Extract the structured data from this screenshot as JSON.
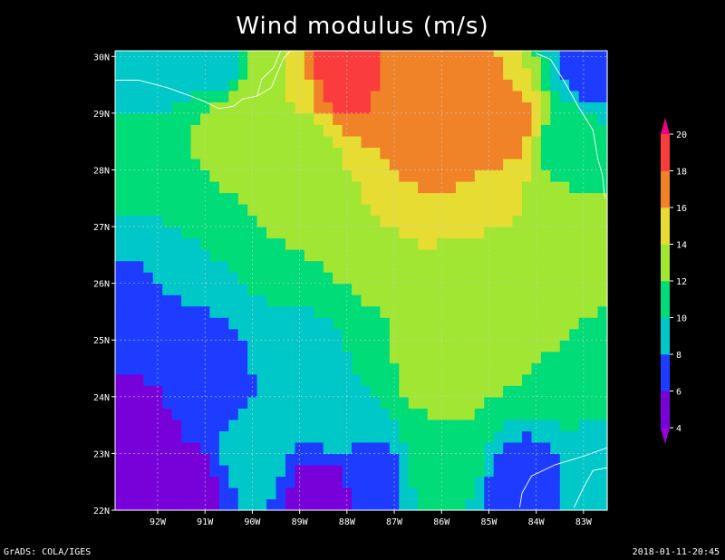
{
  "chart_data": {
    "type": "heatmap",
    "title": "Wind modulus (m/s)",
    "x_ticks": [
      "92W",
      "91W",
      "90W",
      "89W",
      "88W",
      "87W",
      "86W",
      "85W",
      "84W",
      "83W"
    ],
    "y_ticks": [
      "30N",
      "29N",
      "28N",
      "27N",
      "26N",
      "25N",
      "24N",
      "23N",
      "22N"
    ],
    "xlim": [
      -92.9,
      -82.5
    ],
    "ylim": [
      22,
      30.1
    ],
    "colorbar": {
      "levels": [
        4,
        6,
        8,
        10,
        12,
        14,
        16,
        18,
        20
      ],
      "labels": [
        "4",
        "6",
        "8",
        "10",
        "12",
        "14",
        "16",
        "18",
        "20"
      ],
      "colors": [
        "#a000e0",
        "#7800d8",
        "#1e3cff",
        "#00c8c8",
        "#00dc78",
        "#a0e632",
        "#e6dc32",
        "#f08228",
        "#fa3c3c",
        "#f00082"
      ]
    },
    "grid": true,
    "fields": [
      {
        "lon": -88.0,
        "lat": 29.7,
        "value": 19
      },
      {
        "lon": -86.8,
        "lat": 29.5,
        "value": 17.5
      },
      {
        "lon": -86.5,
        "lat": 28.4,
        "value": 16.5
      },
      {
        "lon": -85.6,
        "lat": 29.1,
        "value": 17
      },
      {
        "lon": -84.6,
        "lat": 28.8,
        "value": 16.5
      },
      {
        "lon": -87.5,
        "lat": 27.2,
        "value": 14
      },
      {
        "lon": -84.2,
        "lat": 26.8,
        "value": 14
      },
      {
        "lon": -85.5,
        "lat": 25.4,
        "value": 13.5
      },
      {
        "lon": -86.0,
        "lat": 24.4,
        "value": 13
      },
      {
        "lon": -88.5,
        "lat": 26.5,
        "value": 12
      },
      {
        "lon": -89.0,
        "lat": 28.2,
        "value": 13
      },
      {
        "lon": -90.5,
        "lat": 28.7,
        "value": 13
      },
      {
        "lon": -92.2,
        "lat": 28.5,
        "value": 11
      },
      {
        "lon": -91.5,
        "lat": 26.8,
        "value": 10
      },
      {
        "lon": -89.0,
        "lat": 24.9,
        "value": 9.5
      },
      {
        "lon": -88.0,
        "lat": 23.7,
        "value": 10
      },
      {
        "lon": -86.0,
        "lat": 23.0,
        "value": 11.5
      },
      {
        "lon": -83.3,
        "lat": 24.5,
        "value": 11.5
      },
      {
        "lon": -83.4,
        "lat": 28.5,
        "value": 11.5
      },
      {
        "lon": -82.8,
        "lat": 29.8,
        "value": 7
      },
      {
        "lon": -92.5,
        "lat": 25.5,
        "value": 7
      },
      {
        "lon": -91.0,
        "lat": 24.3,
        "value": 6.5
      },
      {
        "lon": -92.6,
        "lat": 23.3,
        "value": 5
      },
      {
        "lon": -91.3,
        "lat": 22.4,
        "value": 5.5
      },
      {
        "lon": -88.5,
        "lat": 22.2,
        "value": 4.5
      },
      {
        "lon": -87.6,
        "lat": 22.6,
        "value": 7
      },
      {
        "lon": -90.0,
        "lat": 22.9,
        "value": 9
      },
      {
        "lon": -84.2,
        "lat": 22.4,
        "value": 6.5
      },
      {
        "lon": -82.8,
        "lat": 22.6,
        "value": 9
      },
      {
        "lon": -92.2,
        "lat": 29.8,
        "value": 8
      },
      {
        "lon": -90.8,
        "lat": 29.9,
        "value": 9
      },
      {
        "lon": -89.6,
        "lat": 29.5,
        "value": 14
      },
      {
        "lon": -84.0,
        "lat": 25.2,
        "value": 12.5
      }
    ]
  },
  "footer": {
    "left": "GrADS: COLA/IGES",
    "right": "2018-01-11-20:45"
  }
}
